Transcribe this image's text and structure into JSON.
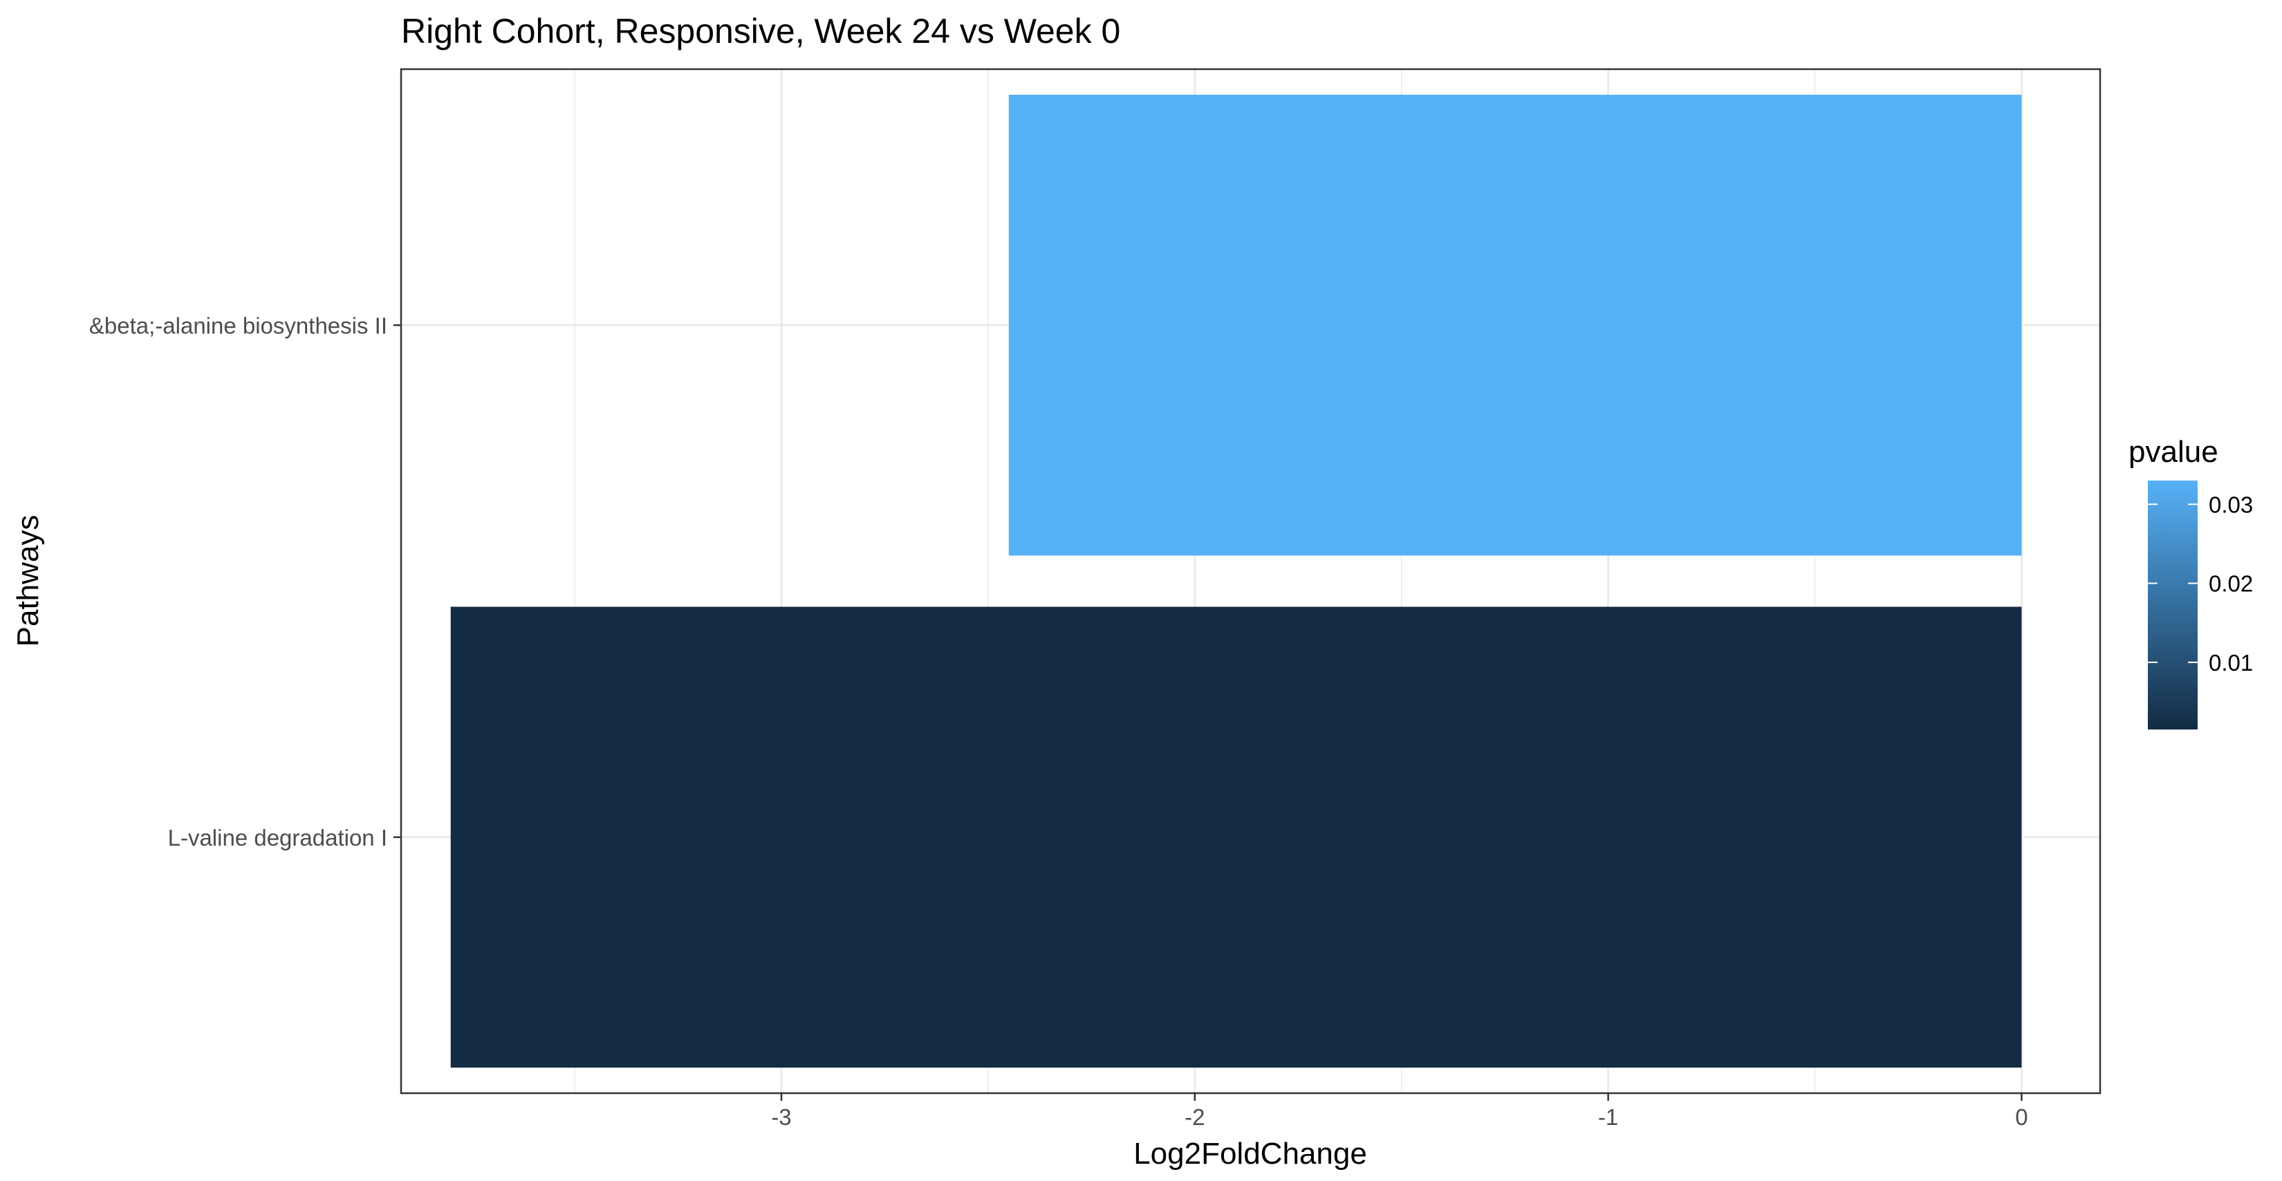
{
  "chart_data": {
    "type": "bar",
    "orientation": "horizontal",
    "title": "Right Cohort, Responsive, Week 24 vs Week 0",
    "xlabel": "Log2FoldChange",
    "ylabel": "Pathways",
    "xlim": [
      -3.92,
      0.19
    ],
    "x_ticks": [
      {
        "value": -3,
        "label": "-3"
      },
      {
        "value": -2,
        "label": "-2"
      },
      {
        "value": -1,
        "label": "-1"
      },
      {
        "value": 0,
        "label": "0"
      }
    ],
    "x_minor_ticks": [
      -3.5,
      -2.5,
      -1.5,
      -0.5
    ],
    "categories": [
      "&beta;-alanine biosynthesis II",
      "L-valine degradation I"
    ],
    "values": [
      -2.45,
      -3.8
    ],
    "pvalues": [
      0.033,
      0.0015
    ],
    "grid": true,
    "legend": {
      "title": "pvalue",
      "position": "right",
      "range": [
        0.0015,
        0.033
      ],
      "ticks": [
        {
          "value": 0.01,
          "label": "0.01"
        },
        {
          "value": 0.02,
          "label": "0.02"
        },
        {
          "value": 0.03,
          "label": "0.03"
        }
      ],
      "color_low": "#132B43",
      "color_high": "#56B1F7"
    },
    "colors": {
      "grid": "#ebebeb",
      "panel_border": "#333333",
      "tick_text": "#4d4d4d"
    }
  }
}
